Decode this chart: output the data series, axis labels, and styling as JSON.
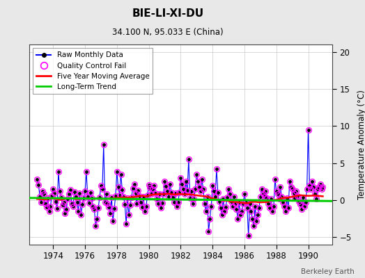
{
  "title": "BIE-LI-XI-DU",
  "subtitle": "34.100 N, 95.033 E (China)",
  "ylabel": "Temperature Anomaly (°C)",
  "watermark": "Berkeley Earth",
  "ylim": [
    -6,
    21
  ],
  "yticks": [
    -5,
    0,
    5,
    10,
    15,
    20
  ],
  "xlim": [
    1972.5,
    1991.5
  ],
  "xticks": [
    1974,
    1976,
    1978,
    1980,
    1982,
    1984,
    1986,
    1988,
    1990
  ],
  "bg_color": "#e8e8e8",
  "plot_bg_color": "#ffffff",
  "raw_color": "#0000ff",
  "qc_color": "#ff00ff",
  "moving_avg_color": "#ff0000",
  "trend_color": "#00cc00",
  "raw_data": [
    [
      1973.0,
      2.8
    ],
    [
      1973.083,
      2.1
    ],
    [
      1973.167,
      0.5
    ],
    [
      1973.25,
      -0.3
    ],
    [
      1973.333,
      1.2
    ],
    [
      1973.417,
      0.8
    ],
    [
      1973.5,
      -0.5
    ],
    [
      1973.583,
      -0.9
    ],
    [
      1973.667,
      0.3
    ],
    [
      1973.75,
      -1.5
    ],
    [
      1973.833,
      -0.8
    ],
    [
      1973.917,
      0.6
    ],
    [
      1974.0,
      1.5
    ],
    [
      1974.083,
      0.9
    ],
    [
      1974.167,
      -0.2
    ],
    [
      1974.25,
      -1.1
    ],
    [
      1974.333,
      3.8
    ],
    [
      1974.417,
      1.2
    ],
    [
      1974.5,
      0.4
    ],
    [
      1974.583,
      -0.7
    ],
    [
      1974.667,
      -0.3
    ],
    [
      1974.75,
      -1.8
    ],
    [
      1974.833,
      -1.2
    ],
    [
      1974.917,
      0.2
    ],
    [
      1975.0,
      0.8
    ],
    [
      1975.083,
      1.4
    ],
    [
      1975.167,
      -0.5
    ],
    [
      1975.25,
      -0.8
    ],
    [
      1975.333,
      1.1
    ],
    [
      1975.417,
      0.5
    ],
    [
      1975.5,
      -0.3
    ],
    [
      1975.583,
      -1.5
    ],
    [
      1975.667,
      0.9
    ],
    [
      1975.75,
      -2.0
    ],
    [
      1975.833,
      -0.6
    ],
    [
      1975.917,
      0.3
    ],
    [
      1976.0,
      1.2
    ],
    [
      1976.083,
      3.8
    ],
    [
      1976.167,
      0.5
    ],
    [
      1976.25,
      -0.4
    ],
    [
      1976.333,
      1.0
    ],
    [
      1976.417,
      0.3
    ],
    [
      1976.5,
      -0.8
    ],
    [
      1976.583,
      -1.2
    ],
    [
      1976.667,
      -3.5
    ],
    [
      1976.75,
      -2.5
    ],
    [
      1976.833,
      -1.0
    ],
    [
      1976.917,
      0.4
    ],
    [
      1977.0,
      2.0
    ],
    [
      1977.083,
      1.5
    ],
    [
      1977.167,
      7.5
    ],
    [
      1977.25,
      -0.3
    ],
    [
      1977.333,
      0.8
    ],
    [
      1977.417,
      -0.5
    ],
    [
      1977.5,
      -0.9
    ],
    [
      1977.583,
      -1.8
    ],
    [
      1977.667,
      0.4
    ],
    [
      1977.75,
      -2.8
    ],
    [
      1977.833,
      -1.1
    ],
    [
      1977.917,
      0.6
    ],
    [
      1978.0,
      3.8
    ],
    [
      1978.083,
      1.8
    ],
    [
      1978.167,
      0.7
    ],
    [
      1978.25,
      3.5
    ],
    [
      1978.333,
      1.4
    ],
    [
      1978.417,
      0.5
    ],
    [
      1978.5,
      -0.6
    ],
    [
      1978.583,
      -3.2
    ],
    [
      1978.667,
      0.3
    ],
    [
      1978.75,
      -2.0
    ],
    [
      1978.833,
      -0.7
    ],
    [
      1978.917,
      0.4
    ],
    [
      1979.0,
      1.6
    ],
    [
      1979.083,
      2.2
    ],
    [
      1979.167,
      0.9
    ],
    [
      1979.25,
      -0.5
    ],
    [
      1979.333,
      1.3
    ],
    [
      1979.417,
      0.6
    ],
    [
      1979.5,
      -0.3
    ],
    [
      1979.583,
      -0.9
    ],
    [
      1979.667,
      0.5
    ],
    [
      1979.75,
      -1.5
    ],
    [
      1979.833,
      -0.8
    ],
    [
      1979.917,
      0.7
    ],
    [
      1980.0,
      2.1
    ],
    [
      1980.083,
      1.7
    ],
    [
      1980.167,
      0.8
    ],
    [
      1980.25,
      1.5
    ],
    [
      1980.333,
      2.0
    ],
    [
      1980.417,
      0.9
    ],
    [
      1980.5,
      0.2
    ],
    [
      1980.583,
      -0.5
    ],
    [
      1980.667,
      0.8
    ],
    [
      1980.75,
      -1.0
    ],
    [
      1980.833,
      -0.4
    ],
    [
      1980.917,
      0.8
    ],
    [
      1981.0,
      2.5
    ],
    [
      1981.083,
      1.9
    ],
    [
      1981.167,
      1.2
    ],
    [
      1981.25,
      0.5
    ],
    [
      1981.333,
      2.2
    ],
    [
      1981.417,
      1.0
    ],
    [
      1981.5,
      0.4
    ],
    [
      1981.583,
      -0.3
    ],
    [
      1981.667,
      0.9
    ],
    [
      1981.75,
      -0.8
    ],
    [
      1981.833,
      -0.3
    ],
    [
      1981.917,
      1.0
    ],
    [
      1982.0,
      3.0
    ],
    [
      1982.083,
      2.2
    ],
    [
      1982.167,
      1.5
    ],
    [
      1982.25,
      0.8
    ],
    [
      1982.333,
      2.5
    ],
    [
      1982.417,
      1.3
    ],
    [
      1982.5,
      5.5
    ],
    [
      1982.583,
      0.3
    ],
    [
      1982.667,
      1.2
    ],
    [
      1982.75,
      -0.5
    ],
    [
      1982.833,
      0.2
    ],
    [
      1982.917,
      1.5
    ],
    [
      1983.0,
      3.5
    ],
    [
      1983.083,
      2.5
    ],
    [
      1983.167,
      1.8
    ],
    [
      1983.25,
      1.2
    ],
    [
      1983.333,
      2.8
    ],
    [
      1983.417,
      1.5
    ],
    [
      1983.5,
      -0.5
    ],
    [
      1983.583,
      -1.5
    ],
    [
      1983.667,
      0.5
    ],
    [
      1983.75,
      -4.2
    ],
    [
      1983.833,
      -2.5
    ],
    [
      1983.917,
      -0.8
    ],
    [
      1984.0,
      2.0
    ],
    [
      1984.083,
      1.2
    ],
    [
      1984.167,
      0.5
    ],
    [
      1984.25,
      4.2
    ],
    [
      1984.333,
      1.0
    ],
    [
      1984.417,
      -0.2
    ],
    [
      1984.5,
      -1.0
    ],
    [
      1984.583,
      -2.0
    ],
    [
      1984.667,
      0.2
    ],
    [
      1984.75,
      -1.5
    ],
    [
      1984.833,
      -0.9
    ],
    [
      1984.917,
      0.4
    ],
    [
      1985.0,
      1.5
    ],
    [
      1985.083,
      0.8
    ],
    [
      1985.167,
      -0.2
    ],
    [
      1985.25,
      -0.8
    ],
    [
      1985.333,
      0.5
    ],
    [
      1985.417,
      -0.5
    ],
    [
      1985.5,
      -1.2
    ],
    [
      1985.583,
      -2.5
    ],
    [
      1985.667,
      -0.3
    ],
    [
      1985.75,
      -2.0
    ],
    [
      1985.833,
      -1.5
    ],
    [
      1985.917,
      -0.5
    ],
    [
      1986.0,
      0.8
    ],
    [
      1986.083,
      -0.3
    ],
    [
      1986.167,
      -1.0
    ],
    [
      1986.25,
      -4.8
    ],
    [
      1986.333,
      -0.5
    ],
    [
      1986.417,
      -1.5
    ],
    [
      1986.5,
      -2.5
    ],
    [
      1986.583,
      -3.5
    ],
    [
      1986.667,
      -0.8
    ],
    [
      1986.75,
      -2.8
    ],
    [
      1986.833,
      -2.0
    ],
    [
      1986.917,
      -1.0
    ],
    [
      1987.0,
      0.5
    ],
    [
      1987.083,
      1.5
    ],
    [
      1987.167,
      0.8
    ],
    [
      1987.25,
      0.5
    ],
    [
      1987.333,
      1.2
    ],
    [
      1987.417,
      0.3
    ],
    [
      1987.5,
      -0.5
    ],
    [
      1987.583,
      -1.0
    ],
    [
      1987.667,
      0.2
    ],
    [
      1987.75,
      -1.5
    ],
    [
      1987.833,
      -0.8
    ],
    [
      1987.917,
      2.8
    ],
    [
      1988.0,
      1.2
    ],
    [
      1988.083,
      0.8
    ],
    [
      1988.167,
      0.2
    ],
    [
      1988.25,
      1.8
    ],
    [
      1988.333,
      0.5
    ],
    [
      1988.417,
      -0.3
    ],
    [
      1988.5,
      -0.8
    ],
    [
      1988.583,
      -1.5
    ],
    [
      1988.667,
      0.3
    ],
    [
      1988.75,
      -1.0
    ],
    [
      1988.833,
      2.5
    ],
    [
      1988.917,
      1.8
    ],
    [
      1989.0,
      1.5
    ],
    [
      1989.083,
      0.9
    ],
    [
      1989.167,
      0.3
    ],
    [
      1989.25,
      1.2
    ],
    [
      1989.333,
      0.6
    ],
    [
      1989.417,
      -0.2
    ],
    [
      1989.5,
      -0.6
    ],
    [
      1989.583,
      -1.2
    ],
    [
      1989.667,
      0.4
    ],
    [
      1989.75,
      -0.8
    ],
    [
      1989.833,
      -0.3
    ],
    [
      1989.917,
      1.5
    ],
    [
      1990.0,
      9.5
    ],
    [
      1990.083,
      2.0
    ],
    [
      1990.167,
      1.5
    ],
    [
      1990.25,
      2.5
    ],
    [
      1990.333,
      1.8
    ],
    [
      1990.417,
      0.8
    ],
    [
      1990.5,
      0.2
    ],
    [
      1990.583,
      1.5
    ],
    [
      1990.667,
      1.8
    ],
    [
      1990.75,
      2.2
    ],
    [
      1990.833,
      1.5
    ],
    [
      1990.917,
      1.8
    ]
  ],
  "trend_line": [
    [
      1972.5,
      0.3
    ],
    [
      1991.5,
      -0.12
    ]
  ],
  "legend_labels": [
    "Raw Monthly Data",
    "Quality Control Fail",
    "Five Year Moving Average",
    "Long-Term Trend"
  ]
}
